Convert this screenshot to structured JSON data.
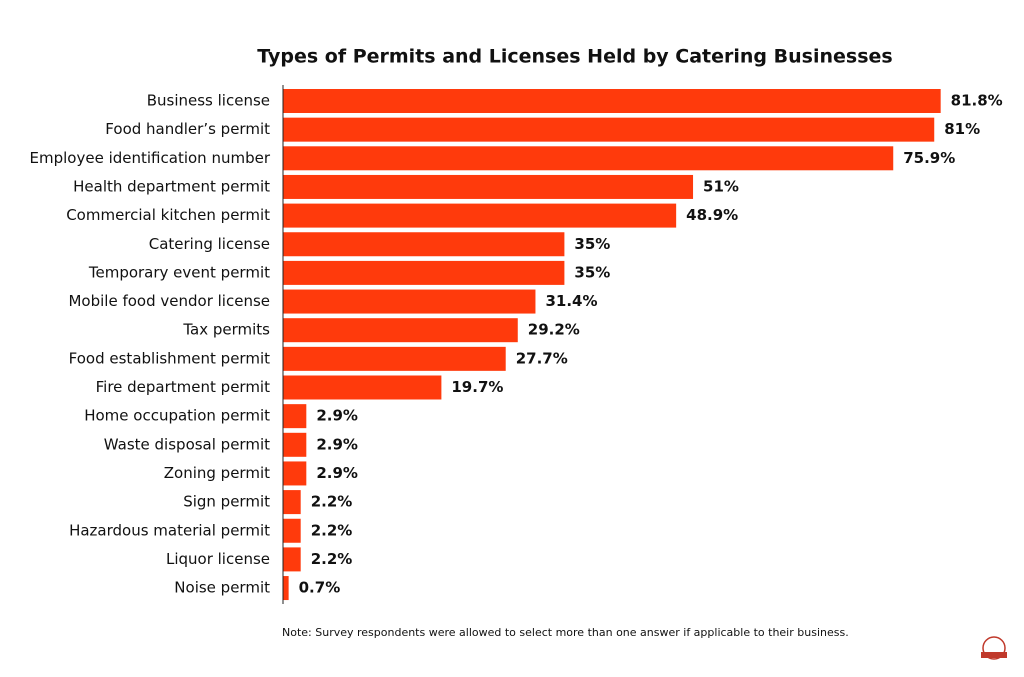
{
  "chart_data": {
    "type": "barh",
    "title": "Types of Permits and Licenses Held by Catering Businesses",
    "categories": [
      "Business license",
      "Food handler’s permit",
      "Employee identification number",
      "Health department permit",
      "Commercial kitchen permit",
      "Catering license",
      "Temporary event permit",
      "Mobile food vendor license",
      "Tax permits",
      "Food establishment permit",
      "Fire department permit",
      "Home occupation permit",
      "Waste disposal permit",
      "Zoning permit",
      "Sign permit",
      "Hazardous material permit",
      "Liquor license",
      "Noise permit"
    ],
    "values": [
      81.8,
      81,
      75.9,
      51,
      48.9,
      35,
      35,
      31.4,
      29.2,
      27.7,
      19.7,
      2.9,
      2.9,
      2.9,
      2.2,
      2.2,
      2.2,
      0.7
    ],
    "value_labels": [
      "81.8%",
      "81%",
      "75.9%",
      "51%",
      "48.9%",
      "35%",
      "35%",
      "31.4%",
      "29.2%",
      "27.7%",
      "19.7%",
      "2.9%",
      "2.9%",
      "2.9%",
      "2.2%",
      "2.2%",
      "2.2%",
      "0.7%"
    ],
    "color": "#ff3a0c",
    "note": "Note: Survey respondents were allowed to select more than one answer if applicable to their business."
  }
}
